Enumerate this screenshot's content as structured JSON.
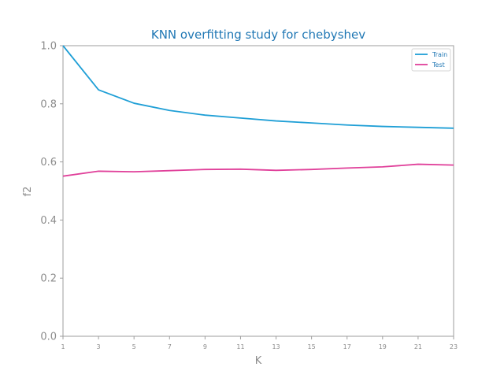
{
  "chart_data": {
    "type": "line",
    "title": "KNN overfitting study for chebyshev",
    "xlabel": "K",
    "ylabel": "f2",
    "x": [
      1,
      3,
      5,
      7,
      9,
      11,
      13,
      15,
      17,
      19,
      21,
      23
    ],
    "xticks": [
      "1",
      "3",
      "5",
      "7",
      "9",
      "11",
      "13",
      "15",
      "17",
      "19",
      "21",
      "23"
    ],
    "yticks": [
      "0.0",
      "0.2",
      "0.4",
      "0.6",
      "0.8",
      "1.0"
    ],
    "xlim": [
      1,
      23
    ],
    "ylim": [
      0.0,
      1.0
    ],
    "grid": false,
    "legend_position": "top-right",
    "series": [
      {
        "name": "Train",
        "color": "#1f9fd6",
        "values": [
          1.0,
          0.848,
          0.802,
          0.777,
          0.761,
          0.751,
          0.741,
          0.734,
          0.727,
          0.722,
          0.719,
          0.716
        ]
      },
      {
        "name": "Test",
        "color": "#e0409a",
        "values": [
          0.551,
          0.568,
          0.566,
          0.57,
          0.574,
          0.575,
          0.571,
          0.574,
          0.579,
          0.583,
          0.592,
          0.589
        ]
      }
    ],
    "colors": {
      "title": "#1f77b4",
      "axis_text": "#8c8c8c",
      "spine": "#9e9e9e"
    }
  }
}
